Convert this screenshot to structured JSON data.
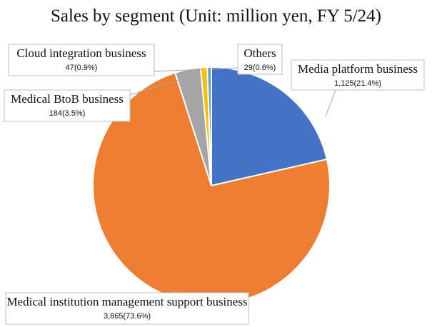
{
  "chart_data": {
    "type": "pie",
    "title": "Sales by segment (Unit: million yen, FY 5/24)",
    "slices": [
      {
        "name": "Media platform business",
        "value": 1125,
        "percent": 21.4,
        "color": "#4472C4",
        "value_label": "1,125(21.4%)"
      },
      {
        "name": "Medical institution management support business",
        "value": 3865,
        "percent": 73.6,
        "color": "#ED7D31",
        "value_label": "3,865(73.6%)"
      },
      {
        "name": "Medical BtoB business",
        "value": 184,
        "percent": 3.5,
        "color": "#A5A5A5",
        "value_label": "184(3.5%)"
      },
      {
        "name": "Cloud integration business",
        "value": 47,
        "percent": 0.9,
        "color": "#FFC000",
        "value_label": "47(0.9%)"
      },
      {
        "name": "Others",
        "value": 29,
        "percent": 0.6,
        "color": "#5B9BD5",
        "value_label": "29(0.6%)"
      }
    ]
  }
}
